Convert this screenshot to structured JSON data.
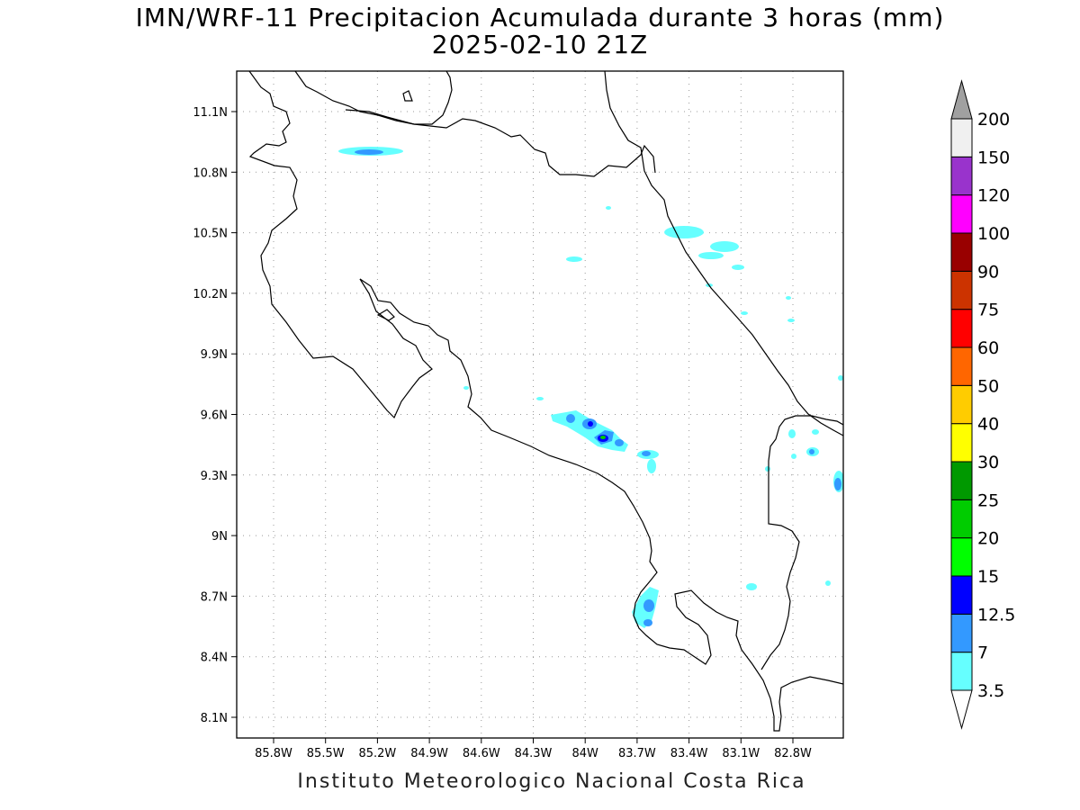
{
  "title": {
    "line1": "IMN/WRF-11 Precipitacion Acumulada durante 3 horas (mm)",
    "line2": "2025-02-10 21Z"
  },
  "footer": "Instituto Meteorologico Nacional Costa Rica",
  "map": {
    "lat_labels": [
      "11.1N",
      "10.8N",
      "10.5N",
      "10.2N",
      "9.9N",
      "9.6N",
      "9.3N",
      "9N",
      "8.7N",
      "8.4N",
      "8.1N"
    ],
    "lon_labels": [
      "85.8W",
      "85.5W",
      "85.2W",
      "84.9W",
      "84.6W",
      "84.3W",
      "84W",
      "83.7W",
      "83.4W",
      "83.1W",
      "82.8W"
    ],
    "gridlines": "dotted"
  },
  "colorbar": {
    "labels": [
      "3.5",
      "7",
      "12.5",
      "15",
      "20",
      "25",
      "30",
      "40",
      "50",
      "60",
      "75",
      "90",
      "100",
      "120",
      "150",
      "200"
    ],
    "colors": [
      "#66ffff",
      "#3399ff",
      "#0000ff",
      "#00ff00",
      "#00cc00",
      "#009900",
      "#ffff00",
      "#ffcc00",
      "#ff6600",
      "#ff0000",
      "#cc3300",
      "#990000",
      "#ff00ff",
      "#9933cc",
      "#f0f0f0"
    ],
    "extend_colors": {
      "low": "#ffffff",
      "high": "#a0a0a0"
    }
  }
}
